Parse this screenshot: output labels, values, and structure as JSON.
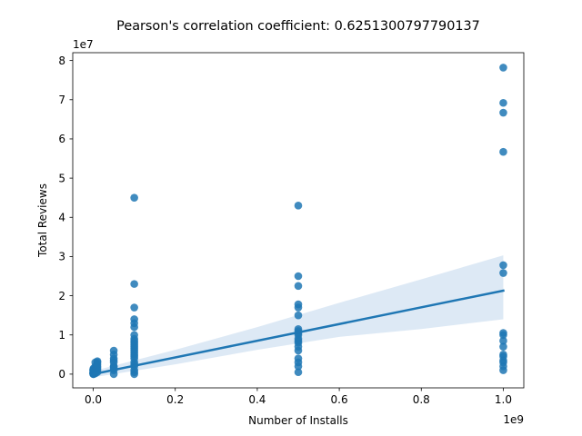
{
  "chart_data": {
    "type": "scatter",
    "title": "Pearson's correlation coefficient: 0.6251300797790137",
    "xlabel": "Number of Installs",
    "ylabel": "Total Reviews",
    "x_offset_label": "1e9",
    "y_offset_label": "1e7",
    "x_ticks": [
      0.0,
      0.2,
      0.4,
      0.6,
      0.8,
      1.0
    ],
    "x_tick_labels": [
      "0.0",
      "0.2",
      "0.4",
      "0.6",
      "0.8",
      "1.0"
    ],
    "y_ticks": [
      0,
      1,
      2,
      3,
      4,
      5,
      6,
      7,
      8
    ],
    "y_tick_labels": [
      "0",
      "1",
      "2",
      "3",
      "4",
      "5",
      "6",
      "7",
      "8"
    ],
    "xlim": [
      -0.05,
      1.05
    ],
    "ylim": [
      -0.35,
      8.2
    ],
    "grid": false,
    "legend": "none",
    "point_color": "#1f77b4",
    "line_color": "#1f77b4",
    "band_color": "#c6dbef",
    "series": [
      {
        "x": [
          0.0,
          0.0,
          0.0,
          0.0,
          0.0,
          0.0,
          0.0,
          0.0,
          0.001,
          0.001,
          0.001,
          0.005,
          0.005,
          0.005,
          0.005,
          0.01,
          0.01,
          0.01,
          0.01,
          0.01,
          0.01,
          0.01,
          0.05,
          0.05,
          0.05,
          0.05,
          0.05,
          0.05,
          0.05,
          0.05,
          0.05,
          0.05,
          0.1,
          0.1,
          0.1,
          0.1,
          0.1,
          0.1,
          0.1,
          0.1,
          0.1,
          0.1,
          0.1,
          0.1,
          0.1,
          0.1,
          0.1,
          0.1,
          0.1,
          0.1,
          0.1,
          0.1,
          0.1,
          0.1,
          0.1,
          0.1,
          0.5,
          0.5,
          0.5,
          0.5,
          0.5,
          0.5,
          0.5,
          0.5,
          0.5,
          0.5,
          0.5,
          0.5,
          0.5,
          0.5,
          0.5,
          0.5,
          0.5,
          0.5,
          0.5,
          1.0,
          1.0,
          1.0,
          1.0,
          1.0,
          1.0,
          1.0,
          1.0,
          1.0,
          1.0,
          1.0,
          1.0,
          1.0,
          1.0,
          1.0,
          1.0
        ],
        "y": [
          0.0,
          0.01,
          0.02,
          0.03,
          0.05,
          0.08,
          0.1,
          0.12,
          0.0,
          0.05,
          0.15,
          0.02,
          0.1,
          0.2,
          0.3,
          0.05,
          0.1,
          0.15,
          0.2,
          0.25,
          0.3,
          0.33,
          0.0,
          0.1,
          0.2,
          0.3,
          0.4,
          0.5,
          0.6,
          0.2,
          0.15,
          0.35,
          0.0,
          0.1,
          0.2,
          0.3,
          0.4,
          0.5,
          0.6,
          0.7,
          0.8,
          0.9,
          1.0,
          1.2,
          1.3,
          1.4,
          1.7,
          2.3,
          4.5,
          0.55,
          0.65,
          0.75,
          0.85,
          0.05,
          0.25,
          0.45,
          0.05,
          0.2,
          0.3,
          0.6,
          0.8,
          0.9,
          1.0,
          1.1,
          1.15,
          1.5,
          1.7,
          1.78,
          2.25,
          2.5,
          4.3,
          0.4,
          0.7,
          0.85,
          1.05,
          0.1,
          0.2,
          0.35,
          0.5,
          0.7,
          0.85,
          1.0,
          1.05,
          2.58,
          2.78,
          5.67,
          6.67,
          6.92,
          7.82,
          0.3,
          0.45
        ],
        "regression": {
          "x": [
            0.0,
            1.0
          ],
          "y": [
            0.0,
            2.13
          ]
        },
        "confidence_band": {
          "x": [
            0.0,
            0.2,
            0.4,
            0.6,
            0.8,
            1.0
          ],
          "upper": [
            0.08,
            0.62,
            1.2,
            1.82,
            2.42,
            3.03
          ],
          "lower": [
            -0.08,
            0.25,
            0.62,
            0.95,
            1.15,
            1.4
          ]
        }
      }
    ]
  }
}
